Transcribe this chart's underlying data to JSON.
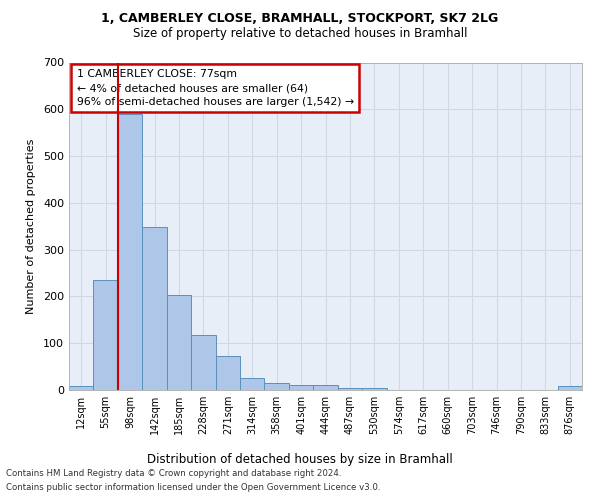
{
  "title_line1": "1, CAMBERLEY CLOSE, BRAMHALL, STOCKPORT, SK7 2LG",
  "title_line2": "Size of property relative to detached houses in Bramhall",
  "xlabel": "Distribution of detached houses by size in Bramhall",
  "ylabel": "Number of detached properties",
  "bin_labels": [
    "12sqm",
    "55sqm",
    "98sqm",
    "142sqm",
    "185sqm",
    "228sqm",
    "271sqm",
    "314sqm",
    "358sqm",
    "401sqm",
    "444sqm",
    "487sqm",
    "530sqm",
    "574sqm",
    "617sqm",
    "660sqm",
    "703sqm",
    "746sqm",
    "790sqm",
    "833sqm",
    "876sqm"
  ],
  "bar_heights": [
    8,
    235,
    590,
    348,
    203,
    117,
    73,
    25,
    15,
    10,
    10,
    5,
    5,
    0,
    0,
    0,
    0,
    0,
    0,
    0,
    8
  ],
  "bar_color": "#aec6e8",
  "bar_edge_color": "#5a8fbd",
  "grid_color": "#d0d8e8",
  "background_color": "#e8eef8",
  "marker_bin_index": 1.5,
  "annotation_text": "1 CAMBERLEY CLOSE: 77sqm\n← 4% of detached houses are smaller (64)\n96% of semi-detached houses are larger (1,542) →",
  "annotation_box_color": "#ffffff",
  "annotation_border_color": "#cc0000",
  "footnote_line1": "Contains HM Land Registry data © Crown copyright and database right 2024.",
  "footnote_line2": "Contains public sector information licensed under the Open Government Licence v3.0.",
  "ylim": [
    0,
    700
  ],
  "yticks": [
    0,
    100,
    200,
    300,
    400,
    500,
    600,
    700
  ]
}
